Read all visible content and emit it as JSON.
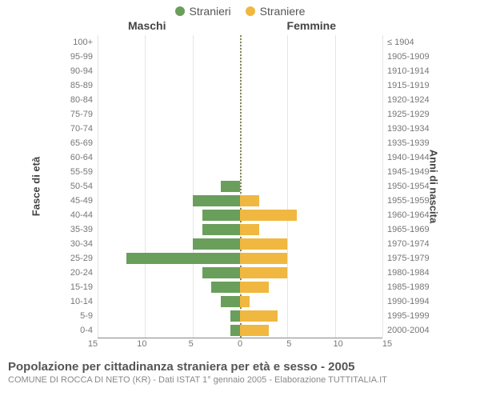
{
  "chart": {
    "type": "population-pyramid",
    "legend": [
      {
        "label": "Stranieri",
        "color": "#6a9e5b"
      },
      {
        "label": "Straniere",
        "color": "#f0b840"
      }
    ],
    "header_left": "Maschi",
    "header_right": "Femmine",
    "axis_left_title": "Fasce di età",
    "axis_right_title": "Anni di nascita",
    "x_max": 15,
    "x_ticks": [
      15,
      10,
      5,
      0,
      5,
      10,
      15
    ],
    "grid_positions_pct": [
      0,
      16.67,
      33.33,
      50,
      66.67,
      83.33,
      100
    ],
    "grid_color": "#e4e4e4",
    "centerline_color": "#888855",
    "bar_colors": {
      "male": "#6a9e5b",
      "female": "#f0b840"
    },
    "background_color": "#ffffff",
    "rows": [
      {
        "age": "100+",
        "birth": "≤ 1904",
        "m": 0,
        "f": 0
      },
      {
        "age": "95-99",
        "birth": "1905-1909",
        "m": 0,
        "f": 0
      },
      {
        "age": "90-94",
        "birth": "1910-1914",
        "m": 0,
        "f": 0
      },
      {
        "age": "85-89",
        "birth": "1915-1919",
        "m": 0,
        "f": 0
      },
      {
        "age": "80-84",
        "birth": "1920-1924",
        "m": 0,
        "f": 0
      },
      {
        "age": "75-79",
        "birth": "1925-1929",
        "m": 0,
        "f": 0
      },
      {
        "age": "70-74",
        "birth": "1930-1934",
        "m": 0,
        "f": 0
      },
      {
        "age": "65-69",
        "birth": "1935-1939",
        "m": 0,
        "f": 0
      },
      {
        "age": "60-64",
        "birth": "1940-1944",
        "m": 0,
        "f": 0
      },
      {
        "age": "55-59",
        "birth": "1945-1949",
        "m": 0,
        "f": 0
      },
      {
        "age": "50-54",
        "birth": "1950-1954",
        "m": 2,
        "f": 0
      },
      {
        "age": "45-49",
        "birth": "1955-1959",
        "m": 5,
        "f": 2
      },
      {
        "age": "40-44",
        "birth": "1960-1964",
        "m": 4,
        "f": 6
      },
      {
        "age": "35-39",
        "birth": "1965-1969",
        "m": 4,
        "f": 2
      },
      {
        "age": "30-34",
        "birth": "1970-1974",
        "m": 5,
        "f": 5
      },
      {
        "age": "25-29",
        "birth": "1975-1979",
        "m": 12,
        "f": 5
      },
      {
        "age": "20-24",
        "birth": "1980-1984",
        "m": 4,
        "f": 5
      },
      {
        "age": "15-19",
        "birth": "1985-1989",
        "m": 3,
        "f": 3
      },
      {
        "age": "10-14",
        "birth": "1990-1994",
        "m": 2,
        "f": 1
      },
      {
        "age": "5-9",
        "birth": "1995-1999",
        "m": 1,
        "f": 4
      },
      {
        "age": "0-4",
        "birth": "2000-2004",
        "m": 1,
        "f": 3
      }
    ],
    "footer_title": "Popolazione per cittadinanza straniera per età e sesso - 2005",
    "footer_sub": "COMUNE DI ROCCA DI NETO (KR) - Dati ISTAT 1° gennaio 2005 - Elaborazione TUTTITALIA.IT"
  }
}
